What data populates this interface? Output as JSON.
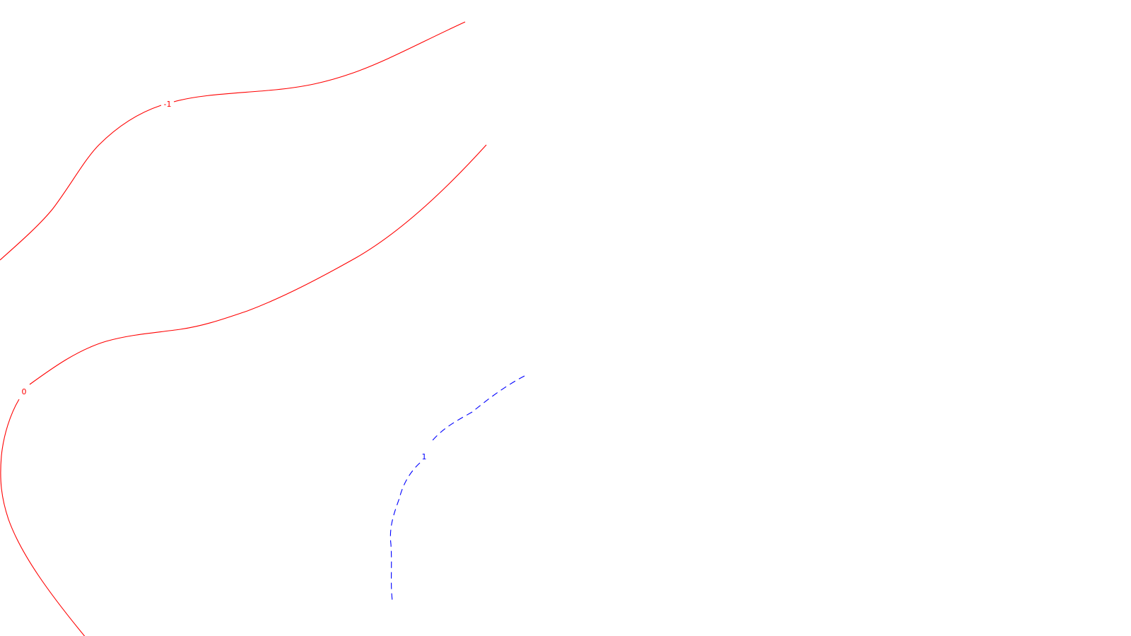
{
  "chart_data": {
    "type": "contour",
    "title": "",
    "xlabel": "",
    "ylabel": "",
    "grid": false,
    "legend": "none",
    "levels": [
      {
        "level": "-1",
        "label": "-1",
        "color": "#ff0000",
        "line_style": "solid"
      },
      {
        "level": "0",
        "label": "0",
        "color": "#ff0000",
        "line_style": "solid"
      },
      {
        "level": "1",
        "label": "1",
        "color": "#0000ff",
        "line_style": "dashed"
      }
    ]
  }
}
